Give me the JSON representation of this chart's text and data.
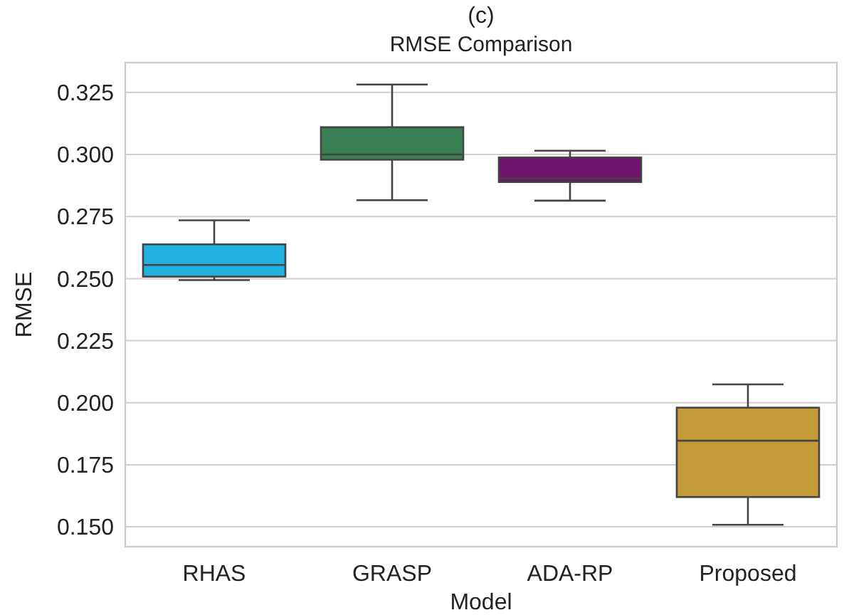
{
  "chart_data": {
    "type": "box",
    "title": "(c)",
    "subtitle": "RMSE Comparison",
    "xlabel": "Model",
    "ylabel": "RMSE",
    "categories": [
      "RHAS",
      "GRASP",
      "ADA-RP",
      "Proposed"
    ],
    "colors": [
      "#22b0e0",
      "#3a8055",
      "#701470",
      "#c49a36"
    ],
    "boxes": [
      {
        "low": 0.2494,
        "q1": 0.2508,
        "median": 0.2555,
        "q3": 0.2638,
        "high": 0.2735
      },
      {
        "low": 0.2816,
        "q1": 0.2979,
        "median": 0.3,
        "q3": 0.311,
        "high": 0.3282
      },
      {
        "low": 0.2814,
        "q1": 0.2889,
        "median": 0.2904,
        "q3": 0.2988,
        "high": 0.3015
      },
      {
        "low": 0.1508,
        "q1": 0.162,
        "median": 0.1847,
        "q3": 0.198,
        "high": 0.2074
      }
    ],
    "ylim": [
      0.142,
      0.337
    ],
    "yticks": [
      {
        "value": 0.15,
        "label": "0.150"
      },
      {
        "value": 0.175,
        "label": "0.175"
      },
      {
        "value": 0.2,
        "label": "0.200"
      },
      {
        "value": 0.225,
        "label": "0.225"
      },
      {
        "value": 0.25,
        "label": "0.250"
      },
      {
        "value": 0.275,
        "label": "0.275"
      },
      {
        "value": 0.3,
        "label": "0.300"
      },
      {
        "value": 0.325,
        "label": "0.325"
      }
    ],
    "grid": "y"
  }
}
